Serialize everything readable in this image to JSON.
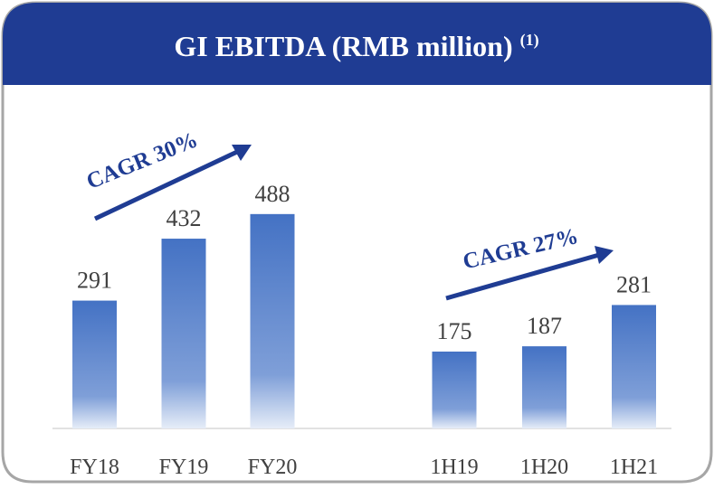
{
  "chart_data": {
    "type": "bar",
    "title": "GI EBITDA (RMB million)",
    "title_note": "(1)",
    "categories": [
      "FY18",
      "FY19",
      "FY20",
      "1H19",
      "1H20",
      "1H21"
    ],
    "values": [
      291,
      432,
      488,
      175,
      187,
      281
    ],
    "color": "#4472c4",
    "annotations": [
      "CAGR 30%",
      "CAGR 27%"
    ]
  }
}
